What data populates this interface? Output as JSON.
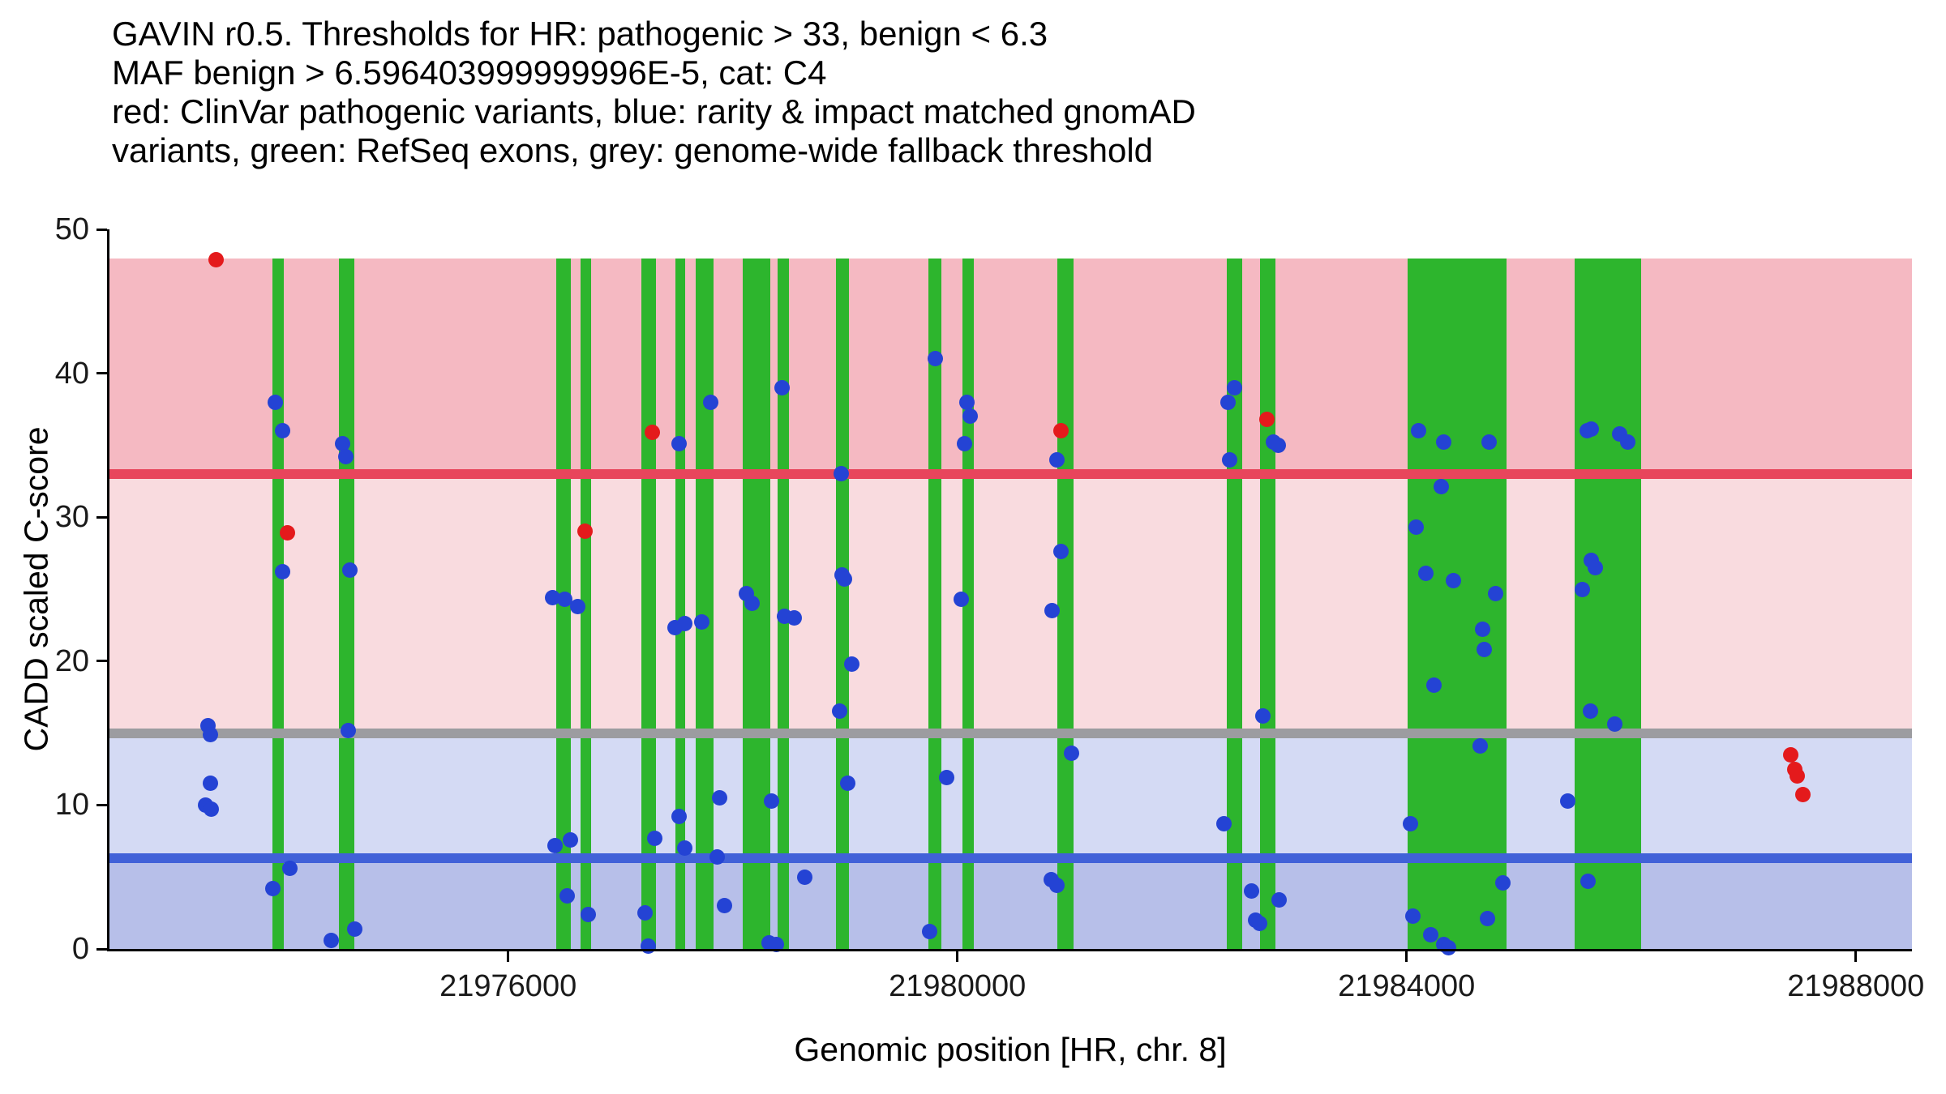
{
  "title_lines": [
    "GAVIN r0.5. Thresholds for HR: pathogenic > 33, benign < 6.3",
    "MAF benign > 6.596403999999996E-5, cat: C4",
    "red: ClinVar pathogenic variants, blue: rarity & impact matched gnomAD",
    "variants, green: RefSeq exons, grey: genome-wide fallback threshold"
  ],
  "axes": {
    "x_label": "Genomic position [HR, chr. 8]",
    "y_label": "CADD scaled C-score",
    "x_ticks": [
      {
        "value": 21976000,
        "label": "21976000"
      },
      {
        "value": 21980000,
        "label": "21980000"
      },
      {
        "value": 21984000,
        "label": "21984000"
      },
      {
        "value": 21988000,
        "label": "21988000"
      }
    ],
    "y_ticks": [
      {
        "value": 0,
        "label": "0"
      },
      {
        "value": 10,
        "label": "10"
      },
      {
        "value": 20,
        "label": "20"
      },
      {
        "value": 30,
        "label": "30"
      },
      {
        "value": 40,
        "label": "40"
      },
      {
        "value": 50,
        "label": "50"
      }
    ]
  },
  "chart_data": {
    "type": "scatter",
    "title": "GAVIN r0.5. Thresholds for HR: pathogenic > 33, benign < 6.3 | MAF benign > 6.596403999999996E-5, cat: C4",
    "xlabel": "Genomic position [HR, chr. 8]",
    "ylabel": "CADD scaled C-score",
    "x_domain": [
      21972450,
      21988500
    ],
    "y_domain": [
      0,
      50
    ],
    "grid": false,
    "band_top": 48,
    "thresholds": {
      "pathogenic_gt": 33,
      "benign_lt": 6.3,
      "genome_wide_fallback": 15,
      "category": "C4"
    },
    "bands": [
      {
        "from": 0,
        "to": 6.3,
        "color": "#b7bfe9"
      },
      {
        "from": 6.3,
        "to": 15,
        "color": "#d4daf4"
      },
      {
        "from": 15,
        "to": 33,
        "color": "#f9dbdf"
      },
      {
        "from": 33,
        "to": 48,
        "color": "#f5b9c2"
      }
    ],
    "hlines": [
      {
        "y": 33,
        "color": "#e8455c"
      },
      {
        "y": 15,
        "color": "#9c9ca0"
      },
      {
        "y": 6.3,
        "color": "#4161d8"
      }
    ],
    "exons": [
      [
        21973904,
        21974000
      ],
      [
        21974492,
        21974631
      ],
      [
        21976428,
        21976556
      ],
      [
        21976642,
        21976738
      ],
      [
        21977187,
        21977316
      ],
      [
        21977487,
        21977572
      ],
      [
        21977668,
        21977829
      ],
      [
        21978086,
        21978332
      ],
      [
        21978396,
        21978503
      ],
      [
        21978920,
        21979037
      ],
      [
        21979743,
        21979861
      ],
      [
        21980043,
        21980150
      ],
      [
        21980888,
        21981037
      ],
      [
        21982396,
        21982535
      ],
      [
        21982695,
        21982834
      ],
      [
        21984010,
        21984890
      ],
      [
        21985498,
        21986086
      ]
    ],
    "series": [
      {
        "name": "ClinVar pathogenic variants",
        "key": "clinvar-pathogenic",
        "color": "#e41a1c",
        "points": [
          [
            21973401,
            47.9
          ],
          [
            21974032,
            28.9
          ],
          [
            21976685,
            29.0
          ],
          [
            21977284,
            35.9
          ],
          [
            21980920,
            36.0
          ],
          [
            21982760,
            36.8
          ],
          [
            21987423,
            13.5
          ],
          [
            21987455,
            12.5
          ],
          [
            21987477,
            12.0
          ],
          [
            21987530,
            10.7
          ]
        ]
      },
      {
        "name": "rarity & impact matched gnomAD variants",
        "key": "gnomad-matched",
        "color": "#2443d4",
        "points": [
          [
            21973326,
            15.5
          ],
          [
            21973348,
            14.9
          ],
          [
            21973348,
            11.5
          ],
          [
            21973305,
            10.0
          ],
          [
            21973358,
            9.7
          ],
          [
            21973925,
            38.0
          ],
          [
            21973989,
            36.0
          ],
          [
            21973989,
            26.2
          ],
          [
            21973904,
            4.2
          ],
          [
            21974053,
            5.6
          ],
          [
            21974428,
            0.6
          ],
          [
            21974631,
            1.4
          ],
          [
            21974524,
            35.1
          ],
          [
            21974556,
            34.2
          ],
          [
            21974588,
            26.3
          ],
          [
            21974577,
            15.2
          ],
          [
            21976396,
            24.4
          ],
          [
            21976503,
            24.3
          ],
          [
            21976620,
            23.8
          ],
          [
            21976417,
            7.2
          ],
          [
            21976556,
            7.6
          ],
          [
            21976524,
            3.7
          ],
          [
            21976717,
            2.4
          ],
          [
            21977219,
            2.5
          ],
          [
            21977305,
            7.7
          ],
          [
            21977251,
            0.2
          ],
          [
            21977519,
            35.1
          ],
          [
            21977487,
            22.3
          ],
          [
            21977572,
            22.6
          ],
          [
            21977519,
            9.2
          ],
          [
            21977572,
            7.0
          ],
          [
            21977807,
            38.0
          ],
          [
            21977722,
            22.7
          ],
          [
            21977882,
            10.5
          ],
          [
            21977925,
            3.0
          ],
          [
            21977861,
            6.4
          ],
          [
            21978118,
            24.7
          ],
          [
            21978171,
            24.0
          ],
          [
            21978342,
            10.3
          ],
          [
            21978321,
            0.4
          ],
          [
            21978385,
            0.3
          ],
          [
            21978439,
            39.0
          ],
          [
            21978460,
            23.1
          ],
          [
            21978546,
            23.0
          ],
          [
            21978642,
            5.0
          ],
          [
            21978963,
            33.0
          ],
          [
            21978974,
            26.0
          ],
          [
            21978995,
            25.7
          ],
          [
            21978952,
            16.5
          ],
          [
            21979059,
            19.8
          ],
          [
            21979027,
            11.5
          ],
          [
            21979807,
            41.0
          ],
          [
            21979754,
            1.2
          ],
          [
            21979903,
            11.9
          ],
          [
            21980085,
            38.0
          ],
          [
            21980117,
            37.0
          ],
          [
            21980064,
            35.1
          ],
          [
            21980032,
            24.3
          ],
          [
            21980888,
            34.0
          ],
          [
            21980920,
            27.6
          ],
          [
            21980845,
            23.5
          ],
          [
            21980834,
            4.8
          ],
          [
            21980888,
            4.4
          ],
          [
            21981016,
            13.6
          ],
          [
            21982471,
            39.0
          ],
          [
            21982407,
            38.0
          ],
          [
            21982428,
            34.0
          ],
          [
            21982375,
            8.7
          ],
          [
            21982717,
            16.2
          ],
          [
            21982813,
            35.2
          ],
          [
            21982856,
            35.0
          ],
          [
            21982620,
            4.0
          ],
          [
            21982652,
            2.0
          ],
          [
            21982695,
            1.8
          ],
          [
            21982866,
            3.4
          ],
          [
            21984107,
            36.0
          ],
          [
            21984332,
            35.2
          ],
          [
            21984738,
            35.2
          ],
          [
            21984086,
            29.3
          ],
          [
            21984310,
            32.1
          ],
          [
            21984171,
            26.1
          ],
          [
            21984417,
            25.6
          ],
          [
            21984246,
            18.3
          ],
          [
            21984674,
            22.2
          ],
          [
            21984792,
            24.7
          ],
          [
            21984695,
            20.8
          ],
          [
            21984652,
            14.1
          ],
          [
            21984032,
            8.7
          ],
          [
            21984053,
            2.3
          ],
          [
            21984214,
            1.0
          ],
          [
            21984332,
            0.3
          ],
          [
            21984374,
            0.1
          ],
          [
            21984717,
            2.1
          ],
          [
            21984856,
            4.6
          ],
          [
            21985605,
            36.0
          ],
          [
            21985648,
            36.1
          ],
          [
            21985894,
            35.8
          ],
          [
            21985969,
            35.2
          ],
          [
            21985648,
            27.0
          ],
          [
            21985680,
            26.5
          ],
          [
            21985562,
            25.0
          ],
          [
            21985637,
            16.5
          ],
          [
            21985851,
            15.6
          ],
          [
            21985434,
            10.3
          ],
          [
            21985616,
            4.7
          ]
        ]
      }
    ]
  }
}
